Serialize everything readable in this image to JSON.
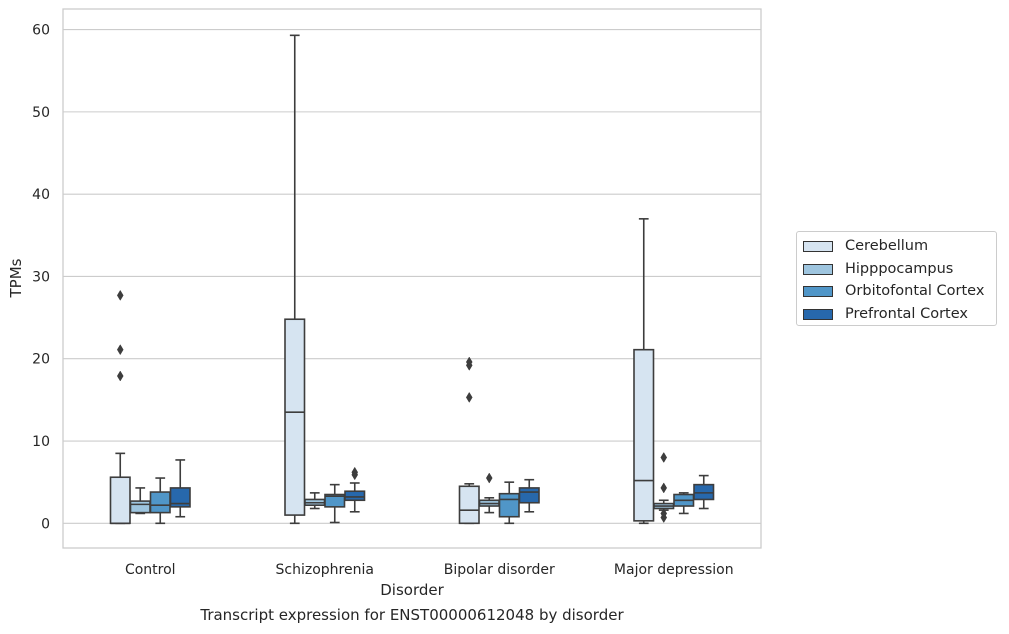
{
  "caption": "Transcript expression for ENST00000612048 by disorder",
  "chart_data": {
    "type": "box",
    "xlabel": "Disorder",
    "ylabel": "TPMs",
    "ylim": [
      -3,
      62.5
    ],
    "yticks": [
      0,
      10,
      20,
      30,
      40,
      50,
      60
    ],
    "grid": "horizontal",
    "legend_position": "right",
    "categories": [
      "Control",
      "Schizophrenia",
      "Bipolar disorder",
      "Major depression"
    ],
    "series": [
      {
        "name": "Cerebellum",
        "color": "#d6e4f1",
        "boxes": [
          {
            "low": 0,
            "q1": 0,
            "median": 0,
            "q3": 5.6,
            "high": 8.5,
            "outliers": [
              17.9,
              21.1,
              27.7
            ]
          },
          {
            "low": 0,
            "q1": 1.0,
            "median": 13.5,
            "q3": 24.8,
            "high": 59.3,
            "outliers": []
          },
          {
            "low": 0,
            "q1": 0,
            "median": 1.6,
            "q3": 4.5,
            "high": 4.8,
            "outliers": [
              15.3,
              19.2,
              19.6
            ]
          },
          {
            "low": 0,
            "q1": 0.3,
            "median": 5.2,
            "q3": 21.1,
            "high": 37.0,
            "outliers": []
          }
        ]
      },
      {
        "name": "Hipppocampus",
        "color": "#9ec5df",
        "boxes": [
          {
            "low": 1.2,
            "q1": 1.3,
            "median": 2.3,
            "q3": 2.7,
            "high": 4.3,
            "outliers": []
          },
          {
            "low": 1.8,
            "q1": 2.2,
            "median": 2.5,
            "q3": 2.9,
            "high": 3.7,
            "outliers": []
          },
          {
            "low": 1.3,
            "q1": 2.1,
            "median": 2.4,
            "q3": 2.8,
            "high": 3.1,
            "outliers": [
              5.5
            ]
          },
          {
            "low": 1.6,
            "q1": 1.8,
            "median": 2.1,
            "q3": 2.4,
            "high": 2.8,
            "outliers": [
              0.7,
              1.2,
              4.3,
              8.0
            ]
          }
        ]
      },
      {
        "name": "Orbitofontal Cortex",
        "color": "#5096c8",
        "boxes": [
          {
            "low": 0,
            "q1": 1.3,
            "median": 2.2,
            "q3": 3.8,
            "high": 5.5,
            "outliers": []
          },
          {
            "low": 0.1,
            "q1": 2.0,
            "median": 3.3,
            "q3": 3.5,
            "high": 4.7,
            "outliers": []
          },
          {
            "low": 0,
            "q1": 0.8,
            "median": 2.9,
            "q3": 3.6,
            "high": 5.0,
            "outliers": []
          },
          {
            "low": 1.2,
            "q1": 2.1,
            "median": 2.8,
            "q3": 3.5,
            "high": 3.7,
            "outliers": []
          }
        ]
      },
      {
        "name": "Prefrontal Cortex",
        "color": "#2768ac",
        "boxes": [
          {
            "low": 0.8,
            "q1": 2.0,
            "median": 2.4,
            "q3": 4.3,
            "high": 7.7,
            "outliers": []
          },
          {
            "low": 1.4,
            "q1": 2.8,
            "median": 3.2,
            "q3": 3.9,
            "high": 4.9,
            "outliers": [
              5.9,
              6.2
            ]
          },
          {
            "low": 1.4,
            "q1": 2.5,
            "median": 3.8,
            "q3": 4.3,
            "high": 5.3,
            "outliers": []
          },
          {
            "low": 1.8,
            "q1": 2.9,
            "median": 3.7,
            "q3": 4.7,
            "high": 5.8,
            "outliers": []
          }
        ]
      }
    ]
  }
}
